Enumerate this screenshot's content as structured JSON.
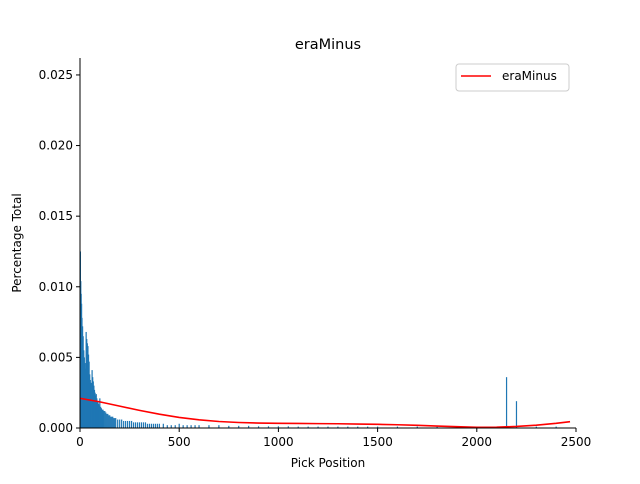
{
  "chart_data": {
    "type": "bar",
    "title": "eraMinus",
    "xlabel": "Pick Position",
    "ylabel": "Percentage Total",
    "xlim": [
      0,
      2500
    ],
    "ylim": [
      0,
      0.0262
    ],
    "xticks": [
      0,
      500,
      1000,
      1500,
      2000,
      2500
    ],
    "xtick_labels": [
      "0",
      "500",
      "1000",
      "1500",
      "2000",
      "2500"
    ],
    "yticks": [
      0.0,
      0.005,
      0.01,
      0.015,
      0.02,
      0.025
    ],
    "ytick_labels": [
      "0.000",
      "0.005",
      "0.010",
      "0.015",
      "0.020",
      "0.025"
    ],
    "grid": false,
    "legend": {
      "position": "top-right",
      "entries": [
        "eraMinus"
      ]
    },
    "bars": {
      "color": "#1f77b4",
      "x": [
        2,
        4,
        6,
        8,
        10,
        13,
        16,
        19,
        22,
        25,
        28,
        31,
        34,
        37,
        40,
        43,
        46,
        49,
        52,
        55,
        58,
        61,
        64,
        67,
        70,
        73,
        76,
        79,
        82,
        85,
        88,
        91,
        94,
        97,
        100,
        104,
        108,
        112,
        116,
        120,
        125,
        130,
        135,
        140,
        145,
        150,
        155,
        160,
        165,
        170,
        175,
        180,
        190,
        200,
        210,
        220,
        230,
        240,
        250,
        260,
        270,
        280,
        290,
        300,
        310,
        320,
        330,
        340,
        350,
        360,
        370,
        380,
        390,
        400,
        420,
        440,
        460,
        480,
        500,
        520,
        540,
        560,
        580,
        600,
        650,
        700,
        750,
        800,
        850,
        900,
        950,
        1000,
        1050,
        1100,
        1150,
        1200,
        1250,
        1300,
        1350,
        1400,
        1450,
        1500,
        1600,
        1700,
        1800,
        1900,
        2000,
        2100,
        2150,
        2200,
        2300,
        2400
      ],
      "values": [
        0.0125,
        0.0104,
        0.0095,
        0.0088,
        0.0078,
        0.0072,
        0.0065,
        0.0055,
        0.005,
        0.0046,
        0.0042,
        0.0068,
        0.0063,
        0.006,
        0.0058,
        0.0052,
        0.0047,
        0.0038,
        0.0034,
        0.0032,
        0.003,
        0.0041,
        0.0036,
        0.0033,
        0.003,
        0.0027,
        0.0025,
        0.0023,
        0.0024,
        0.0021,
        0.0019,
        0.0018,
        0.0017,
        0.0016,
        0.0021,
        0.0015,
        0.0014,
        0.0013,
        0.0013,
        0.0012,
        0.0012,
        0.0011,
        0.001,
        0.001,
        0.0009,
        0.0009,
        0.0008,
        0.0008,
        0.0008,
        0.0007,
        0.0007,
        0.0007,
        0.0006,
        0.0006,
        0.0006,
        0.0005,
        0.0005,
        0.0005,
        0.0005,
        0.0005,
        0.0004,
        0.0004,
        0.0004,
        0.0004,
        0.0004,
        0.0004,
        0.0004,
        0.0003,
        0.0003,
        0.0003,
        0.0003,
        0.0003,
        0.0003,
        0.0003,
        0.0003,
        0.0002,
        0.0002,
        0.0002,
        0.0003,
        0.0002,
        0.0002,
        0.0002,
        0.0002,
        0.0002,
        0.0002,
        0.0002,
        0.00015,
        0.00015,
        0.00015,
        0.00012,
        0.00012,
        0.00012,
        0.00012,
        0.0001,
        0.0001,
        0.0001,
        0.0001,
        0.0001,
        0.0001,
        0.0001,
        0.0001,
        0.0001,
        0.0001,
        0.0001,
        0.0001,
        0.0001,
        0.0001,
        0.0001,
        0.0036,
        0.0019,
        0.0001,
        0.0001
      ]
    },
    "line": {
      "name": "eraMinus",
      "color": "#ff0000",
      "x": [
        0,
        100,
        200,
        300,
        400,
        500,
        600,
        700,
        800,
        900,
        1000,
        1100,
        1200,
        1300,
        1400,
        1500,
        1600,
        1700,
        1800,
        1900,
        2000,
        2100,
        2200,
        2300,
        2400,
        2470
      ],
      "values": [
        0.0021,
        0.00185,
        0.00155,
        0.00125,
        0.00098,
        0.00075,
        0.00058,
        0.00046,
        0.00039,
        0.00035,
        0.00033,
        0.00032,
        0.00031,
        0.0003,
        0.00028,
        0.00026,
        0.00023,
        0.00019,
        0.00014,
        9e-05,
        5e-05,
        6e-05,
        0.00011,
        0.0002,
        0.00033,
        0.00045
      ]
    }
  }
}
